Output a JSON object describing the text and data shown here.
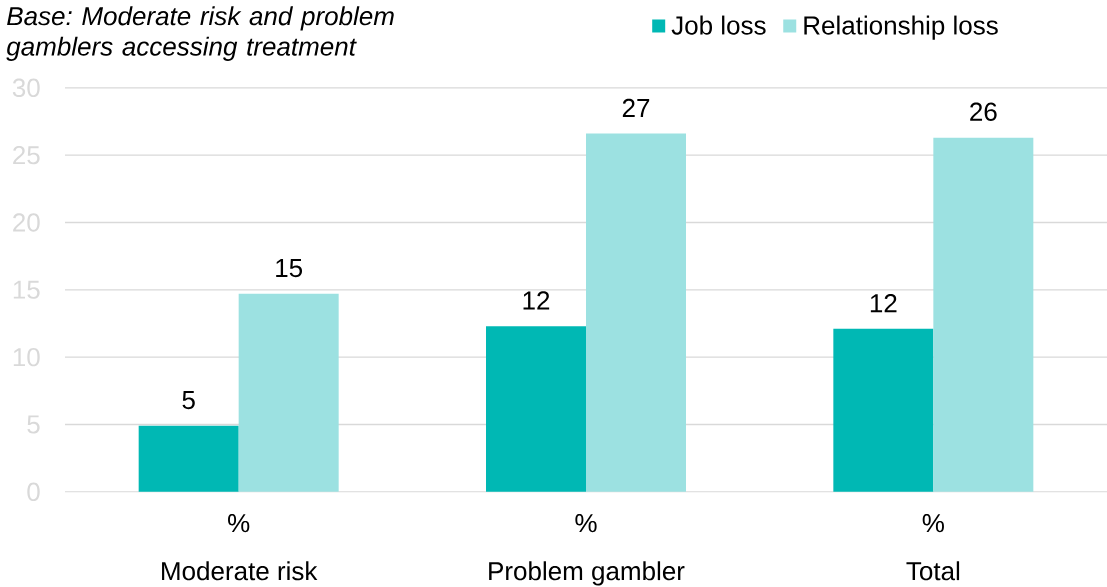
{
  "chart_data": {
    "type": "bar",
    "annotations": [
      "Base: Moderate risk and problem gamblers accessing treatment"
    ],
    "xlabel": "%",
    "categories": [
      "Moderate risk",
      "Problem gambler",
      "Total"
    ],
    "series": [
      {
        "name": "Job loss",
        "color": "#00b8b4",
        "values": [
          4.9,
          12.3,
          12.1
        ],
        "value_labels": [
          "5",
          "12",
          "12"
        ]
      },
      {
        "name": "Relationship loss",
        "color": "#9ce1e1",
        "values": [
          14.7,
          26.6,
          26.3
        ],
        "value_labels": [
          "15",
          "27",
          "26"
        ]
      }
    ],
    "ylim": [
      0,
      30
    ],
    "yticks": [
      0,
      5,
      10,
      15,
      20,
      25,
      30
    ],
    "grid": "y",
    "legend": "top right"
  }
}
